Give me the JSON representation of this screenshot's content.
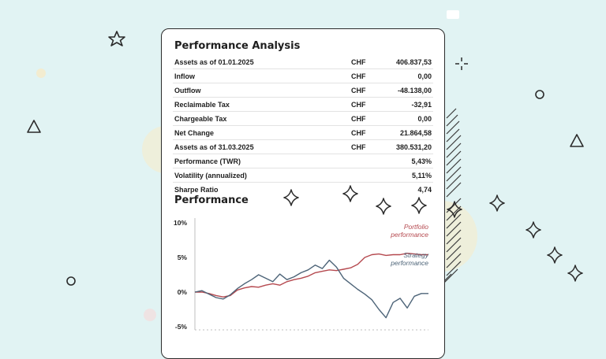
{
  "card": {
    "title": "Performance Analysis",
    "rows": [
      {
        "label": "Assets as of 01.01.2025",
        "currency": "CHF",
        "value": "406.837,53"
      },
      {
        "label": "Inflow",
        "currency": "CHF",
        "value": "0,00"
      },
      {
        "label": "Outflow",
        "currency": "CHF",
        "value": "-48.138,00"
      },
      {
        "label": "Reclaimable Tax",
        "currency": "CHF",
        "value": "-32,91"
      },
      {
        "label": "Chargeable Tax",
        "currency": "CHF",
        "value": "0,00"
      },
      {
        "label": "Net Change",
        "currency": "CHF",
        "value": "21.864,58"
      },
      {
        "label": "Assets as of 31.03.2025",
        "currency": "CHF",
        "value": "380.531,20"
      },
      {
        "label": "Performance (TWR)",
        "currency": "",
        "value": "5,43%"
      },
      {
        "label": "Volatility (annualized)",
        "currency": "",
        "value": "5,11%"
      },
      {
        "label": "Sharpe Ratio",
        "currency": "",
        "value": "4,74"
      }
    ]
  },
  "chart_title": "Performance",
  "colors": {
    "portfolio": "#b5494f",
    "strategy": "#4d6478",
    "background": "#e1f3f3"
  },
  "icons": [
    "star-icon",
    "sparkle-icon",
    "triangle-icon",
    "circle-icon",
    "plus-sparkle-icon"
  ],
  "chart_data": {
    "type": "line",
    "title": "Performance",
    "ylim": [
      -5,
      10
    ],
    "yticks": [
      "10%",
      "5%",
      "0%",
      "-5%"
    ],
    "ytick_values": [
      10,
      5,
      0,
      -5
    ],
    "grid": false,
    "series": [
      {
        "name": "Portfolio performance",
        "label_line1": "Portfolio",
        "label_line2": "performance",
        "color": "#b5494f",
        "values": [
          0,
          0,
          -0.2,
          -0.5,
          -0.7,
          -0.5,
          0.3,
          0.6,
          0.8,
          0.7,
          1.0,
          1.2,
          1.0,
          1.5,
          1.8,
          2.0,
          2.3,
          2.8,
          3.0,
          3.2,
          3.1,
          3.3,
          3.5,
          4.0,
          5.0,
          5.4,
          5.5,
          5.3,
          5.4,
          5.4,
          5.6,
          5.5,
          5.4,
          5.4
        ]
      },
      {
        "name": "Strategy performance",
        "label_line1": "Strategy",
        "label_line2": "performance",
        "color": "#4d6478",
        "values": [
          0,
          0.2,
          -0.3,
          -0.8,
          -1.0,
          -0.4,
          0.5,
          1.2,
          1.8,
          2.5,
          2.0,
          1.5,
          2.6,
          1.8,
          2.2,
          2.8,
          3.2,
          3.9,
          3.4,
          4.6,
          3.6,
          2.0,
          1.2,
          0.4,
          -0.3,
          -1.1,
          -2.5,
          -3.7,
          -1.5,
          -0.9,
          -2.3,
          -0.6,
          -0.2,
          -0.2
        ]
      }
    ]
  }
}
